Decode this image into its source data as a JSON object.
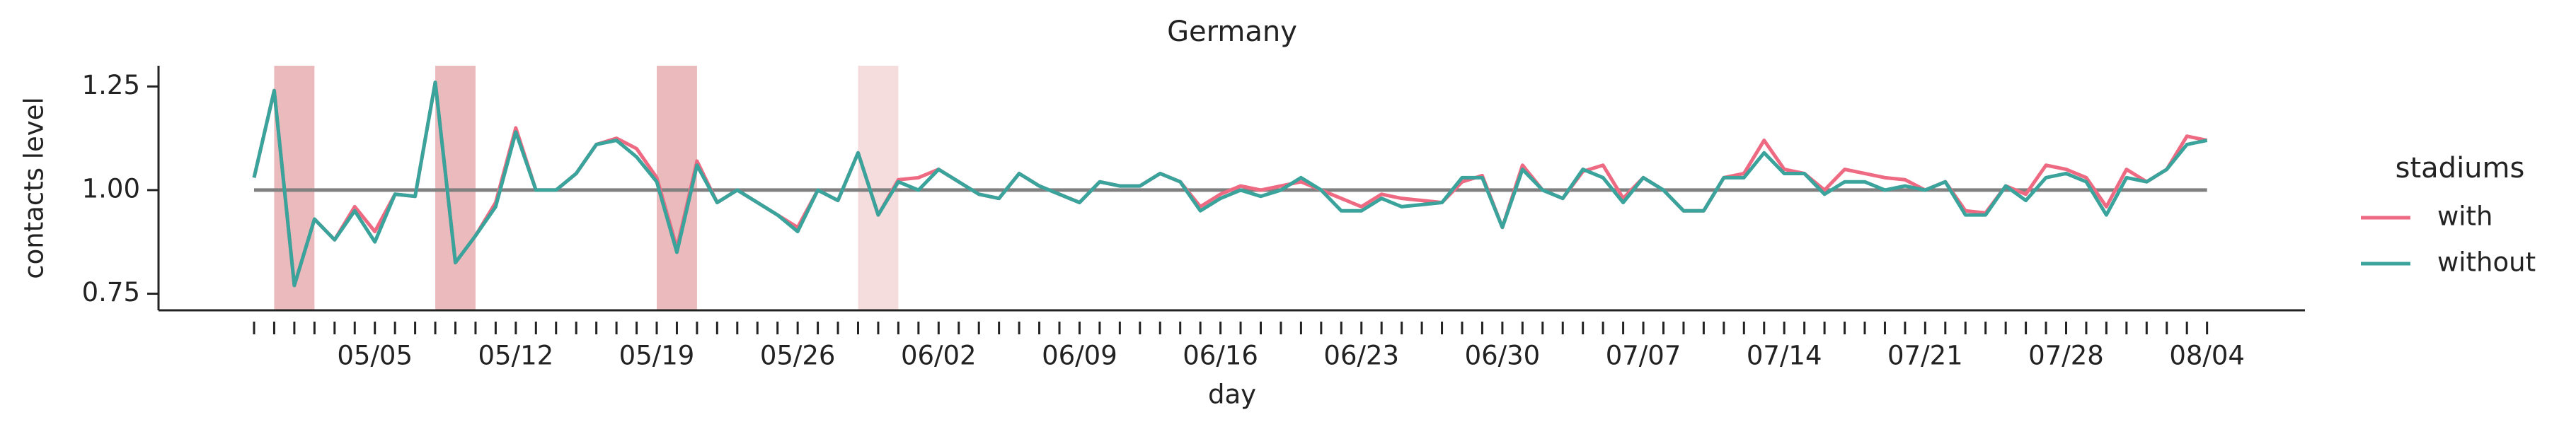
{
  "chart_data": {
    "type": "line",
    "title": "Germany",
    "x_label": "day",
    "y_label": "contacts level",
    "legend_title": "stadiums",
    "legend": "right",
    "categories": [
      null,
      null,
      null,
      null,
      null,
      null,
      "05/05",
      null,
      null,
      null,
      null,
      null,
      null,
      "05/12",
      null,
      null,
      null,
      null,
      null,
      null,
      "05/19",
      null,
      null,
      null,
      null,
      null,
      null,
      "05/26",
      null,
      null,
      null,
      null,
      null,
      null,
      "06/02",
      null,
      null,
      null,
      null,
      null,
      null,
      "06/09",
      null,
      null,
      null,
      null,
      null,
      null,
      "06/16",
      null,
      null,
      null,
      null,
      null,
      null,
      "06/23",
      null,
      null,
      null,
      null,
      null,
      null,
      "06/30",
      null,
      null,
      null,
      null,
      null,
      null,
      "07/07",
      null,
      null,
      null,
      null,
      null,
      null,
      "07/14",
      null,
      null,
      null,
      null,
      null,
      null,
      "07/21",
      null,
      null,
      null,
      null,
      null,
      null,
      "07/28",
      null,
      null,
      null,
      null,
      null,
      null,
      "08/04"
    ],
    "series": [
      {
        "name": "with",
        "color": "#ee6a82",
        "values": [
          1.03,
          1.24,
          0.77,
          0.93,
          0.88,
          0.96,
          0.9,
          0.99,
          0.985,
          1.26,
          0.825,
          0.89,
          0.97,
          1.15,
          1.0,
          1.0,
          1.04,
          1.11,
          1.125,
          1.1,
          1.03,
          0.86,
          1.07,
          0.97,
          1.0,
          0.97,
          0.94,
          0.91,
          1.0,
          0.975,
          1.09,
          0.94,
          1.025,
          1.03,
          1.05,
          1.02,
          0.99,
          0.98,
          1.04,
          1.01,
          0.99,
          0.97,
          1.02,
          1.01,
          1.01,
          1.04,
          1.02,
          0.96,
          0.99,
          1.01,
          1.0,
          1.01,
          1.02,
          1.0,
          0.98,
          0.96,
          0.99,
          0.98,
          0.975,
          0.97,
          1.02,
          1.035,
          0.91,
          1.06,
          1.0,
          0.98,
          1.045,
          1.06,
          0.98,
          1.03,
          1.0,
          0.95,
          0.95,
          1.03,
          1.04,
          1.12,
          1.05,
          1.04,
          1.0,
          1.05,
          1.04,
          1.03,
          1.025,
          1.0,
          1.02,
          0.95,
          0.945,
          1.01,
          0.99,
          1.06,
          1.05,
          1.03,
          0.96,
          1.05,
          1.02,
          1.05,
          1.13,
          1.12
        ]
      },
      {
        "name": "without",
        "color": "#3aa39b",
        "values": [
          1.03,
          1.24,
          0.77,
          0.93,
          0.88,
          0.95,
          0.875,
          0.99,
          0.985,
          1.26,
          0.825,
          0.89,
          0.96,
          1.14,
          1.0,
          1.0,
          1.04,
          1.11,
          1.12,
          1.08,
          1.02,
          0.85,
          1.06,
          0.97,
          1.0,
          0.97,
          0.94,
          0.9,
          1.0,
          0.975,
          1.09,
          0.94,
          1.02,
          1.0,
          1.05,
          1.02,
          0.99,
          0.98,
          1.04,
          1.01,
          0.99,
          0.97,
          1.02,
          1.01,
          1.01,
          1.04,
          1.02,
          0.95,
          0.98,
          1.0,
          0.985,
          1.0,
          1.03,
          1.0,
          0.95,
          0.95,
          0.98,
          0.96,
          0.965,
          0.97,
          1.03,
          1.03,
          0.91,
          1.05,
          1.0,
          0.98,
          1.05,
          1.03,
          0.97,
          1.03,
          1.0,
          0.95,
          0.95,
          1.03,
          1.03,
          1.09,
          1.04,
          1.04,
          0.99,
          1.02,
          1.02,
          1.0,
          1.01,
          1.0,
          1.02,
          0.94,
          0.94,
          1.01,
          0.975,
          1.03,
          1.04,
          1.02,
          0.94,
          1.03,
          1.02,
          1.05,
          1.11,
          1.12
        ]
      }
    ],
    "hline": 1.0,
    "hline_color": "#808080",
    "highlights": [
      [
        1,
        3,
        "#e3a3a6"
      ],
      [
        9,
        11,
        "#e3a3a6"
      ],
      [
        20,
        22,
        "#e3a3a6"
      ],
      [
        30,
        32,
        "#f2d1d2"
      ]
    ],
    "ylim": [
      0.71,
      1.3
    ],
    "yticks": [
      {
        "value": 0.75,
        "label": "0.75"
      },
      {
        "value": 1.0,
        "label": "1.00"
      },
      {
        "value": 1.25,
        "label": "1.25"
      }
    ],
    "grid": false
  }
}
